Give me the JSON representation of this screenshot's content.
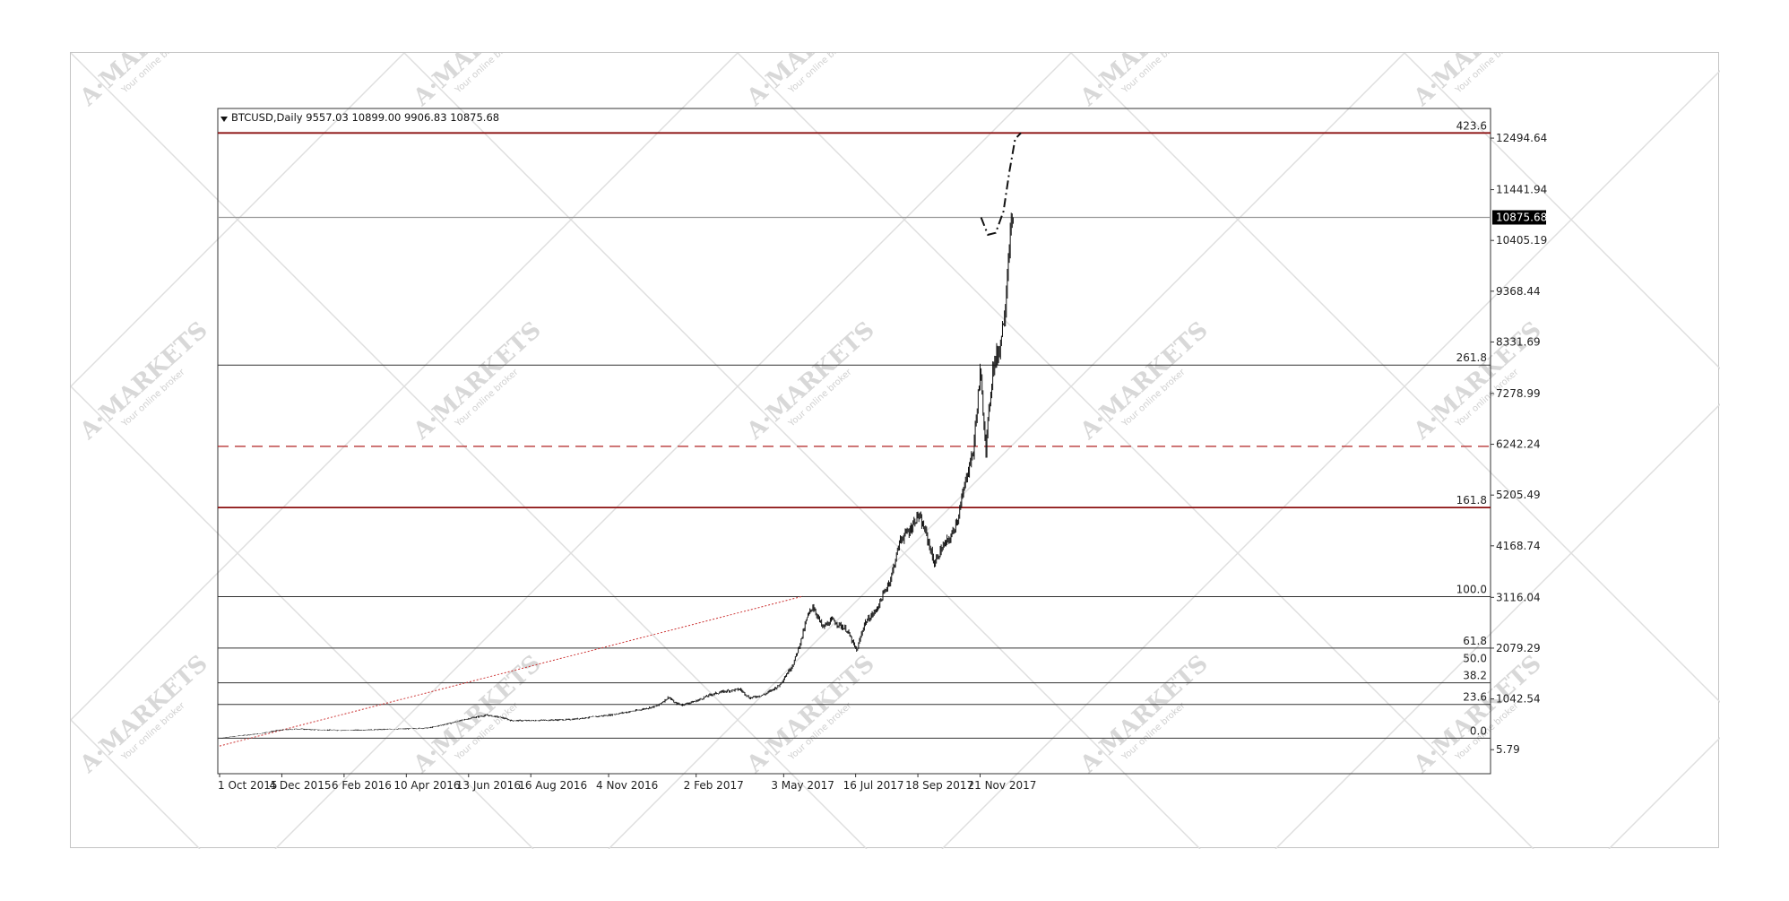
{
  "watermark": {
    "brand": "A·MARKETS",
    "tagline": "Your online broker"
  },
  "chart_data": {
    "type": "candlestick",
    "title": "BTCUSD,Daily  9557.03 10899.00 9906.83 10875.68",
    "symbol": "BTCUSD",
    "timeframe": "Daily",
    "ohlc_last": {
      "open": 9557.03,
      "high": 10899.0,
      "low": 9906.83,
      "close": 10875.68
    },
    "current_price_label": "10875.68",
    "x_ticks": [
      "1 Oct 2015",
      "4 Dec 2015",
      "6 Feb 2016",
      "10 Apr 2016",
      "13 Jun 2016",
      "16 Aug 2016",
      "4 Nov 2016",
      "2 Feb 2017",
      "3 May 2017",
      "16 Jul 2017",
      "18 Sep 2017",
      "21 Nov 2017"
    ],
    "x_tick_days": [
      0,
      64,
      128,
      192,
      256,
      320,
      400,
      490,
      580,
      654,
      718,
      782
    ],
    "y_ticks": [
      5.79,
      1042.54,
      2079.29,
      3116.04,
      4168.74,
      5205.49,
      6242.24,
      7278.99,
      8331.69,
      9368.44,
      10405.19,
      11441.94,
      12494.64
    ],
    "y_tick_labels": [
      "5.79",
      "1042.54",
      "2079.29",
      "3116.04",
      "4168.74",
      "5205.49",
      "6242.24",
      "7278.99",
      "8331.69",
      "9368.44",
      "10405.19",
      "11441.94",
      "12494.64"
    ],
    "ylim": [
      -485,
      13100
    ],
    "fibonacci_levels": [
      {
        "label": "0.0",
        "price": 240,
        "color": "#333333",
        "style": "solid"
      },
      {
        "label": "23.6",
        "price": 930,
        "color": "#333333",
        "style": "solid"
      },
      {
        "label": "38.2",
        "price": 1370,
        "color": "#333333",
        "style": "solid"
      },
      {
        "label": "50.0",
        "price": 1720,
        "color": "#333333",
        "style": "none"
      },
      {
        "label": "61.8",
        "price": 2080,
        "color": "#333333",
        "style": "solid"
      },
      {
        "label": "100.0",
        "price": 3130,
        "color": "#333333",
        "style": "solid"
      },
      {
        "label": "161.8",
        "price": 4950,
        "color": "#8b1010",
        "style": "solid"
      },
      {
        "label": "261.8",
        "price": 7860,
        "color": "#333333",
        "style": "solid"
      },
      {
        "label": "423.6",
        "price": 12600,
        "color": "#8b1010",
        "style": "solid"
      }
    ],
    "horizontal_lines": [
      {
        "price": 10875.68,
        "color": "#999999",
        "style": "solid"
      },
      {
        "price": 6200,
        "color": "#b22222",
        "style": "dashed"
      }
    ],
    "trend_line": {
      "color": "#cc3333",
      "style": "dotted",
      "points": [
        [
          0,
          80
        ],
        [
          600,
          3140
        ]
      ]
    },
    "projection": {
      "color": "#111111",
      "style": "dash-dot",
      "points": [
        [
          783,
          10875.68
        ],
        [
          790,
          10520
        ],
        [
          798,
          10560
        ],
        [
          806,
          11000
        ],
        [
          812,
          11800
        ],
        [
          818,
          12480
        ],
        [
          824,
          12600
        ]
      ]
    },
    "price_path": [
      [
        0,
        240
      ],
      [
        20,
        290
      ],
      [
        40,
        330
      ],
      [
        60,
        400
      ],
      [
        80,
        430
      ],
      [
        100,
        410
      ],
      [
        130,
        400
      ],
      [
        160,
        415
      ],
      [
        190,
        430
      ],
      [
        215,
        450
      ],
      [
        240,
        560
      ],
      [
        260,
        660
      ],
      [
        275,
        710
      ],
      [
        290,
        660
      ],
      [
        300,
        600
      ],
      [
        320,
        600
      ],
      [
        360,
        620
      ],
      [
        400,
        710
      ],
      [
        430,
        810
      ],
      [
        450,
        900
      ],
      [
        462,
        1080
      ],
      [
        468,
        960
      ],
      [
        475,
        920
      ],
      [
        490,
        1000
      ],
      [
        505,
        1130
      ],
      [
        520,
        1200
      ],
      [
        535,
        1240
      ],
      [
        545,
        1060
      ],
      [
        560,
        1130
      ],
      [
        575,
        1310
      ],
      [
        590,
        1760
      ],
      [
        598,
        2250
      ],
      [
        604,
        2700
      ],
      [
        610,
        2940
      ],
      [
        620,
        2500
      ],
      [
        630,
        2650
      ],
      [
        645,
        2450
      ],
      [
        655,
        2020
      ],
      [
        663,
        2580
      ],
      [
        675,
        2850
      ],
      [
        690,
        3500
      ],
      [
        700,
        4300
      ],
      [
        710,
        4500
      ],
      [
        718,
        4800
      ],
      [
        726,
        4450
      ],
      [
        735,
        3800
      ],
      [
        742,
        4100
      ],
      [
        752,
        4350
      ],
      [
        760,
        4800
      ],
      [
        768,
        5600
      ],
      [
        775,
        6100
      ],
      [
        782,
        7700
      ],
      [
        788,
        6200
      ],
      [
        795,
        7800
      ],
      [
        802,
        8200
      ],
      [
        808,
        9100
      ],
      [
        812,
        10400
      ],
      [
        816,
        10875.68
      ]
    ],
    "price_points": 816,
    "xlim": [
      0,
      1305
    ]
  }
}
